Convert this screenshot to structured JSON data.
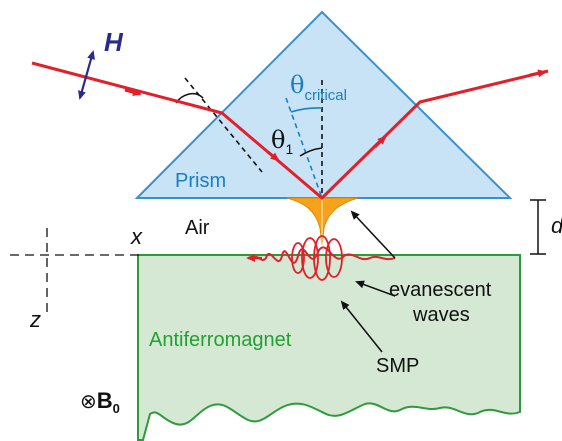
{
  "labels": {
    "h_field": "H",
    "theta_symbol": "θ",
    "critical_subscript": "critical",
    "theta1_subscript": "1",
    "prism": "Prism",
    "air": "Air",
    "gap": "d",
    "axis_x": "x",
    "axis_z": "z",
    "evanescent": "evanescent",
    "waves": "waves",
    "material": "Antiferromagnet",
    "smp": "SMP",
    "b_symbol": "⊗",
    "b_letter": "B",
    "b_subscript": "0"
  },
  "colors": {
    "prism_fill": "#c8e3f5",
    "prism_stroke": "#3a8fd0",
    "beam": "#e0202a",
    "material_fill": "#d5e8d4",
    "material_stroke": "#2e9a3a",
    "label_blue": "#1a7fc2",
    "label_green": "#22a032",
    "h_color": "#2a2a8c",
    "evanescent_fill": "#f7a21b"
  }
}
